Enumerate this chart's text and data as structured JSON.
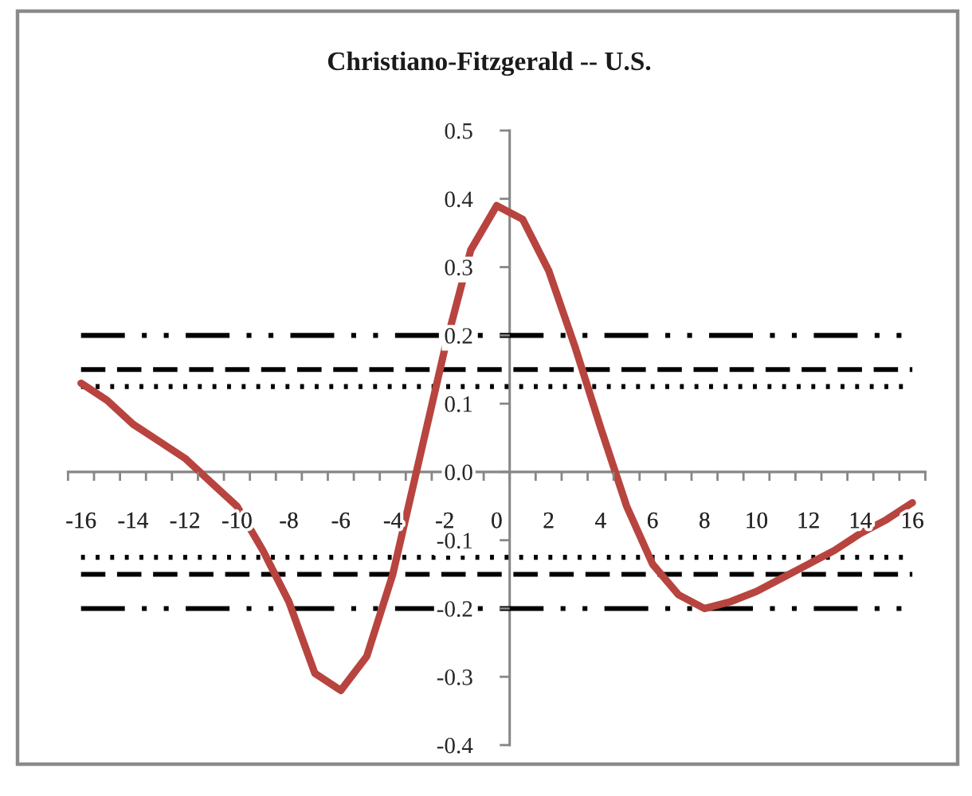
{
  "chart_data": {
    "type": "line",
    "title": "Christiano-Fitzgerald -- U.S.",
    "x": [
      -16,
      -15,
      -14,
      -13,
      -12,
      -11,
      -10,
      -9,
      -8,
      -7,
      -6,
      -5,
      -4,
      -3,
      -2,
      -1,
      0,
      1,
      2,
      3,
      4,
      5,
      6,
      7,
      8,
      9,
      10,
      11,
      12,
      13,
      14,
      15,
      16
    ],
    "series": [
      {
        "color": "#b8443f",
        "values": [
          0.13,
          0.105,
          0.07,
          0.045,
          0.02,
          -0.015,
          -0.05,
          -0.115,
          -0.19,
          -0.295,
          -0.32,
          -0.27,
          -0.15,
          0.015,
          0.18,
          0.325,
          0.39,
          0.37,
          0.295,
          0.185,
          0.065,
          -0.05,
          -0.135,
          -0.18,
          -0.2,
          -0.19,
          -0.175,
          -0.155,
          -0.135,
          -0.115,
          -0.09,
          -0.07,
          -0.045
        ]
      }
    ],
    "ref_lines": [
      {
        "axis": "y",
        "value": 0.2,
        "color": "#000000",
        "line_style": "dashdotdot"
      },
      {
        "axis": "y",
        "value": 0.15,
        "color": "#000000",
        "line_style": "dashed"
      },
      {
        "axis": "y",
        "value": 0.125,
        "color": "#000000",
        "line_style": "dotted"
      },
      {
        "axis": "y",
        "value": -0.125,
        "color": "#000000",
        "line_style": "dotted"
      },
      {
        "axis": "y",
        "value": -0.15,
        "color": "#000000",
        "line_style": "dashed"
      },
      {
        "axis": "y",
        "value": -0.2,
        "color": "#000000",
        "line_style": "dashdotdot"
      }
    ],
    "xlim": [
      -16.5,
      16.5
    ],
    "xticks": [
      {
        "value": -16.5,
        "label": null
      },
      -16,
      {
        "value": -15.5,
        "label": null
      },
      {
        "value": -14.5,
        "label": null
      },
      -14,
      {
        "value": -13.5,
        "label": null
      },
      {
        "value": -12.5,
        "label": null
      },
      -12,
      {
        "value": -11.5,
        "label": null
      },
      {
        "value": -10.5,
        "label": null
      },
      -10,
      {
        "value": -9.5,
        "label": null
      },
      {
        "value": -8.5,
        "label": null
      },
      -8,
      {
        "value": -7.5,
        "label": null
      },
      {
        "value": -6.5,
        "label": null
      },
      -6,
      {
        "value": -5.5,
        "label": null
      },
      {
        "value": -4.5,
        "label": null
      },
      -4,
      {
        "value": -3.5,
        "label": null
      },
      {
        "value": -2.5,
        "label": null
      },
      -2,
      {
        "value": -1.5,
        "label": null
      },
      {
        "value": -0.5,
        "label": null
      },
      0,
      {
        "value": 0.5,
        "label": null
      },
      {
        "value": 1.5,
        "label": null
      },
      2,
      {
        "value": 2.5,
        "label": null
      },
      {
        "value": 3.5,
        "label": null
      },
      4,
      {
        "value": 4.5,
        "label": null
      },
      {
        "value": 5.5,
        "label": null
      },
      6,
      {
        "value": 6.5,
        "label": null
      },
      {
        "value": 7.5,
        "label": null
      },
      8,
      {
        "value": 8.5,
        "label": null
      },
      {
        "value": 9.5,
        "label": null
      },
      10,
      {
        "value": 10.5,
        "label": null
      },
      {
        "value": 11.5,
        "label": null
      },
      12,
      {
        "value": 12.5,
        "label": null
      },
      {
        "value": 13.5,
        "label": null
      },
      14,
      {
        "value": 14.5,
        "label": null
      },
      {
        "value": 15.5,
        "label": null
      },
      16,
      {
        "value": 16.5,
        "label": null
      }
    ],
    "ylim": [
      -0.4,
      0.5
    ],
    "yticks": [
      -0.4,
      -0.3,
      -0.2,
      -0.1,
      {
        "value": 0,
        "label": "0.0"
      },
      0.1,
      0.2,
      0.3,
      0.4,
      0.5
    ],
    "grid": false,
    "legend": false,
    "line_style": "solid",
    "marker": "none"
  }
}
